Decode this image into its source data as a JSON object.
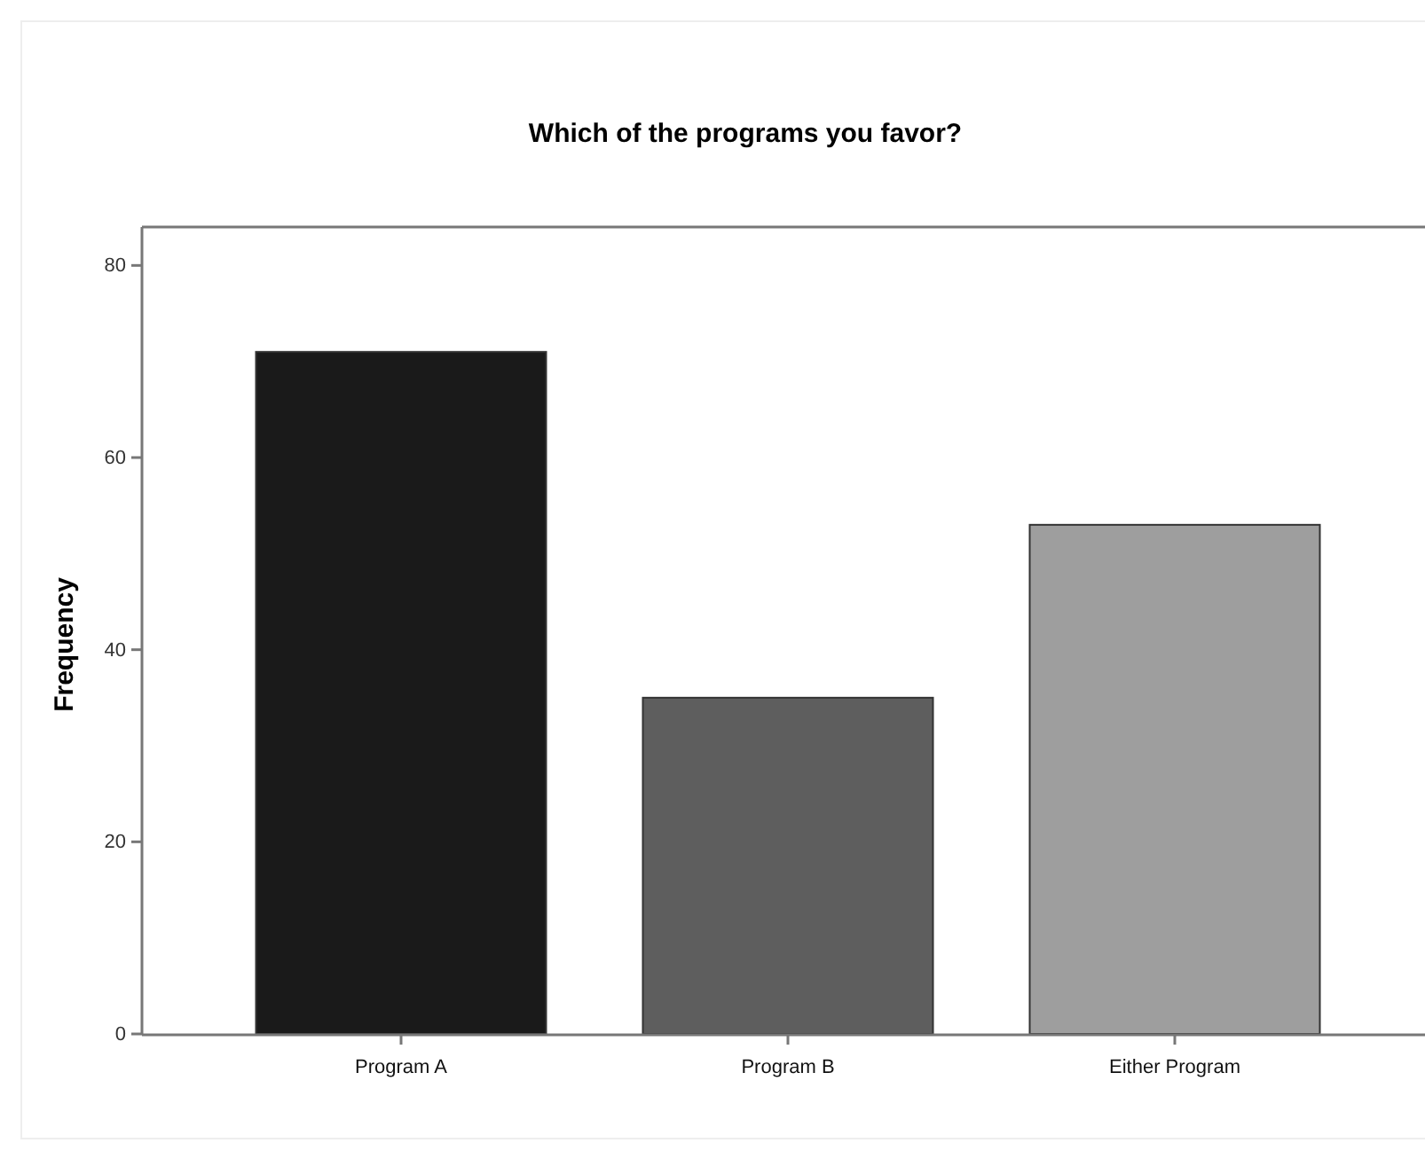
{
  "chart_data": {
    "type": "bar",
    "title": "Which of the programs you favor?",
    "ylabel": "Frequency",
    "categories": [
      "Program A",
      "Program B",
      "Either Program"
    ],
    "values": [
      71,
      35,
      53
    ],
    "colors": [
      "#1a1a1a",
      "#5e5e5e",
      "#9e9e9e"
    ],
    "ylim": [
      0,
      84
    ],
    "yticks": [
      0,
      20,
      40,
      60,
      80
    ],
    "grid": false
  }
}
